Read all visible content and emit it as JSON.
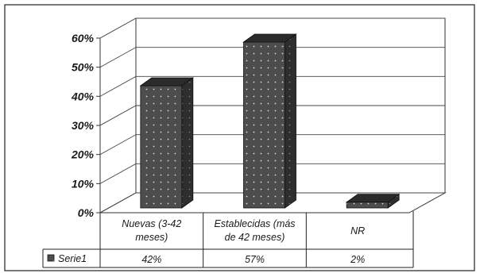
{
  "chart_data": {
    "type": "bar",
    "style": "3d-column-with-data-table",
    "categories": [
      [
        "Nuevas (3-42",
        "meses)"
      ],
      [
        "Establecidas (más",
        "de 42 meses)"
      ],
      [
        "NR"
      ]
    ],
    "series": [
      {
        "name": "Serie1",
        "values": [
          42,
          57,
          2
        ],
        "value_labels": [
          "42%",
          "57%",
          "2%"
        ]
      }
    ],
    "ylim": [
      0,
      60
    ],
    "yticks": [
      "0%",
      "10%",
      "20%",
      "30%",
      "40%",
      "50%",
      "60%"
    ],
    "grid": true,
    "legend": "in data table, left",
    "colors": {
      "bar": "#4d4d4d",
      "bar_top": "#2b2b2b",
      "bar_side": "#333333",
      "dots": "#d9d9d9"
    }
  }
}
